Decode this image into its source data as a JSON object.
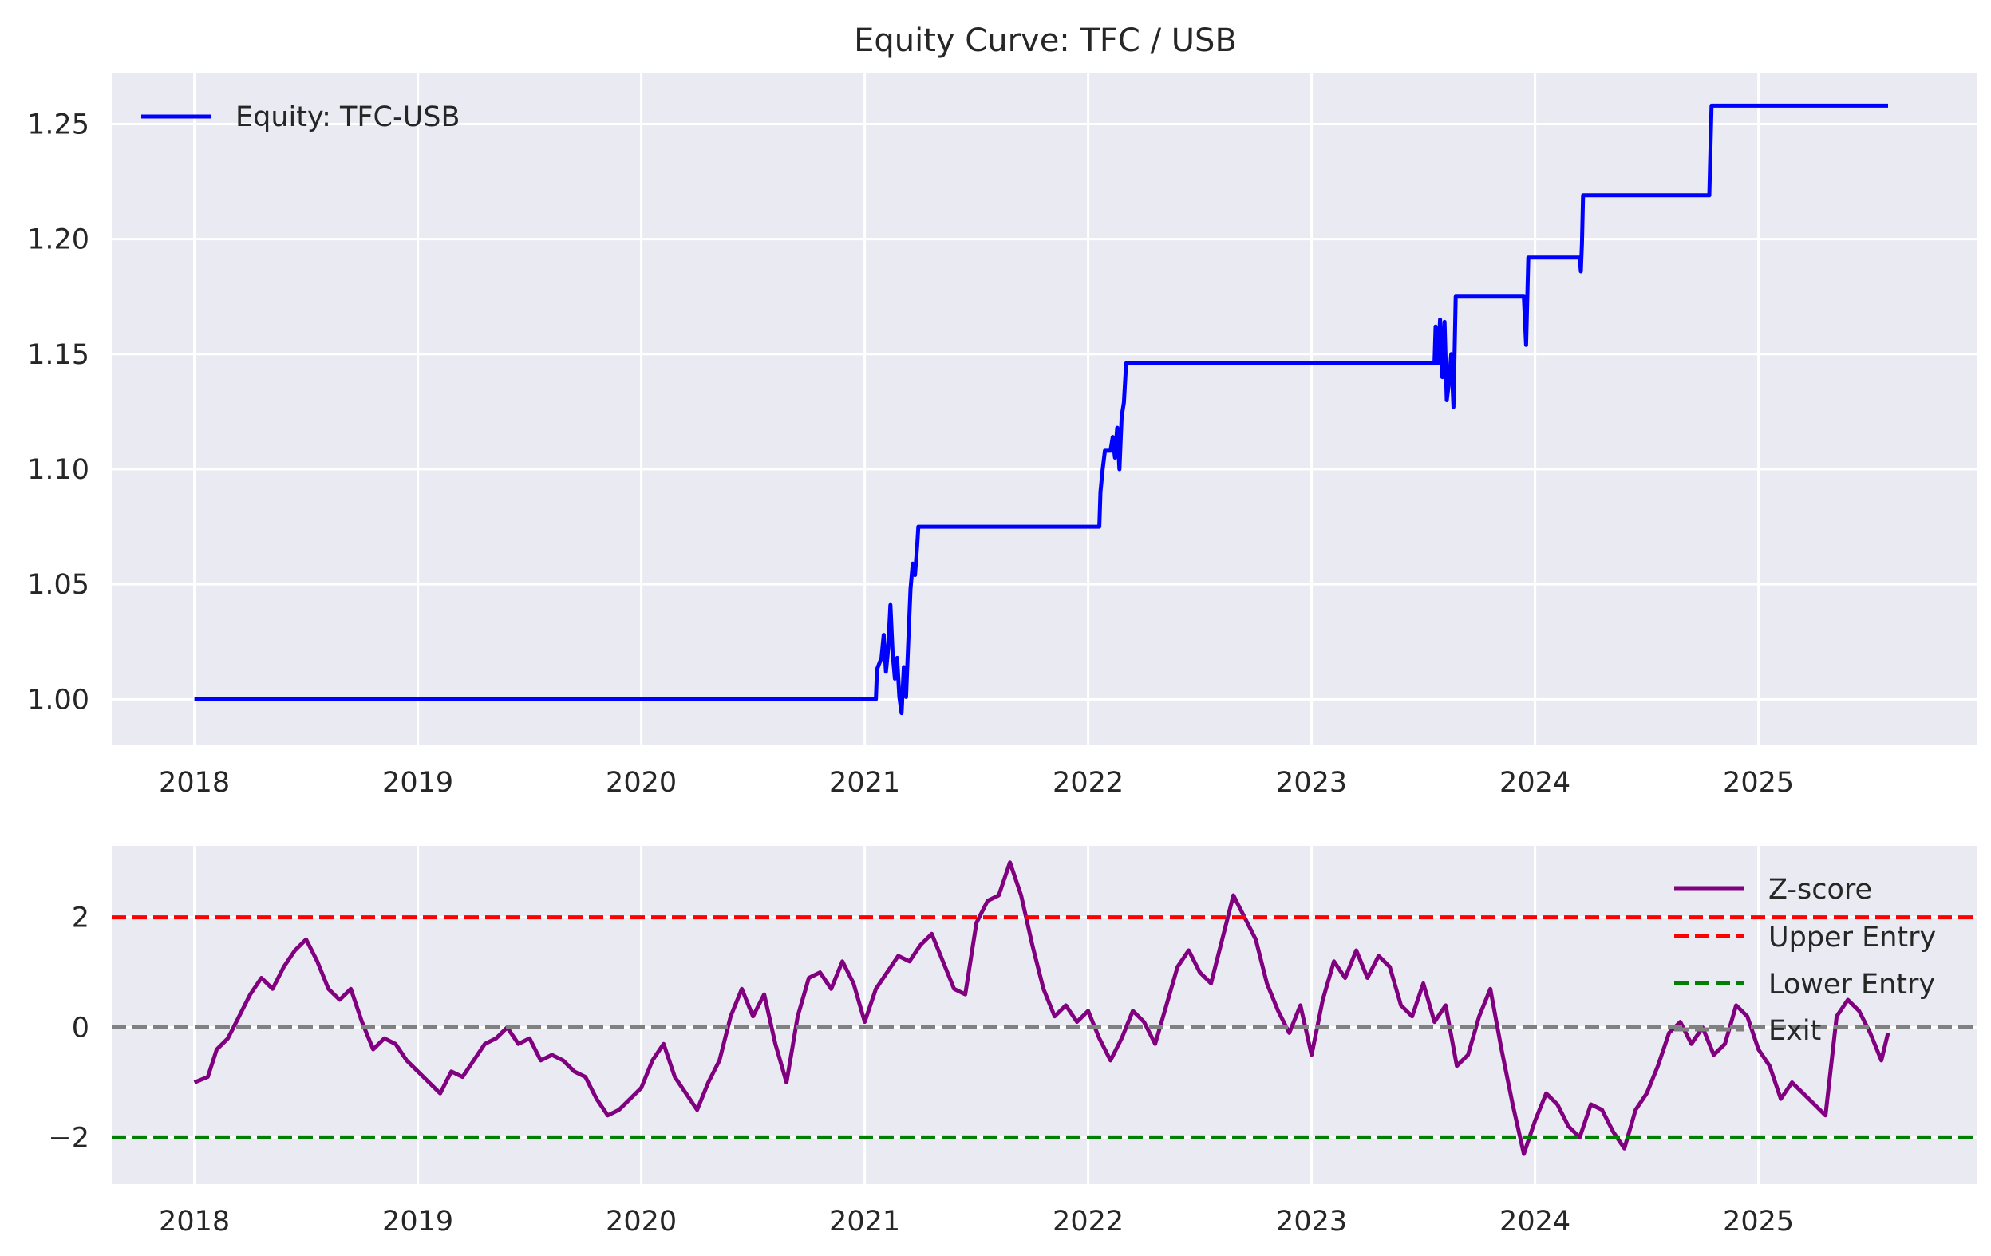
{
  "chart_data": [
    {
      "type": "line",
      "title": "Equity Curve: TFC / USB",
      "xlabel": "",
      "ylabel": "",
      "grid": true,
      "legend_placement": "top-left",
      "xlim": [
        2017.63,
        2025.98
      ],
      "ylim": [
        0.98,
        1.272
      ],
      "x_ticks": [
        "2018",
        "2019",
        "2020",
        "2021",
        "2022",
        "2023",
        "2024",
        "2025"
      ],
      "y_ticks": [
        "1.00",
        "1.05",
        "1.10",
        "1.15",
        "1.20",
        "1.25"
      ],
      "y_tick_values": [
        1.0,
        1.05,
        1.1,
        1.15,
        1.2,
        1.25
      ],
      "series": [
        {
          "name": "Equity: TFC-USB",
          "color": "#0000ff",
          "points": [
            [
              2018.0,
              1.0
            ],
            [
              2021.05,
              1.0
            ],
            [
              2021.055,
              1.013
            ],
            [
              2021.075,
              1.018
            ],
            [
              2021.085,
              1.028
            ],
            [
              2021.095,
              1.012
            ],
            [
              2021.105,
              1.022
            ],
            [
              2021.115,
              1.041
            ],
            [
              2021.125,
              1.02
            ],
            [
              2021.135,
              1.009
            ],
            [
              2021.145,
              1.018
            ],
            [
              2021.155,
              1.001
            ],
            [
              2021.165,
              0.994
            ],
            [
              2021.175,
              1.014
            ],
            [
              2021.185,
              1.001
            ],
            [
              2021.195,
              1.025
            ],
            [
              2021.205,
              1.048
            ],
            [
              2021.215,
              1.059
            ],
            [
              2021.225,
              1.054
            ],
            [
              2021.235,
              1.067
            ],
            [
              2021.24,
              1.075
            ],
            [
              2022.05,
              1.075
            ],
            [
              2022.055,
              1.09
            ],
            [
              2022.065,
              1.1
            ],
            [
              2022.075,
              1.108
            ],
            [
              2022.1,
              1.108
            ],
            [
              2022.11,
              1.114
            ],
            [
              2022.12,
              1.105
            ],
            [
              2022.13,
              1.118
            ],
            [
              2022.14,
              1.1
            ],
            [
              2022.15,
              1.123
            ],
            [
              2022.16,
              1.129
            ],
            [
              2022.17,
              1.146
            ],
            [
              2023.55,
              1.146
            ],
            [
              2023.555,
              1.162
            ],
            [
              2023.565,
              1.146
            ],
            [
              2023.575,
              1.165
            ],
            [
              2023.585,
              1.14
            ],
            [
              2023.595,
              1.164
            ],
            [
              2023.605,
              1.13
            ],
            [
              2023.615,
              1.138
            ],
            [
              2023.625,
              1.15
            ],
            [
              2023.635,
              1.127
            ],
            [
              2023.645,
              1.175
            ],
            [
              2023.95,
              1.175
            ],
            [
              2023.96,
              1.154
            ],
            [
              2023.97,
              1.192
            ],
            [
              2024.2,
              1.192
            ],
            [
              2024.205,
              1.186
            ],
            [
              2024.21,
              1.198
            ],
            [
              2024.215,
              1.219
            ],
            [
              2024.78,
              1.219
            ],
            [
              2024.79,
              1.258
            ],
            [
              2025.58,
              1.258
            ]
          ]
        }
      ]
    },
    {
      "type": "line",
      "title": "",
      "xlabel": "",
      "ylabel": "",
      "grid": true,
      "legend_placement": "top-right",
      "xlim": [
        2017.63,
        2025.98
      ],
      "ylim": [
        -2.85,
        3.3
      ],
      "x_ticks": [
        "2018",
        "2019",
        "2020",
        "2021",
        "2022",
        "2023",
        "2024",
        "2025"
      ],
      "y_ticks": [
        "−2",
        "0",
        "2"
      ],
      "y_tick_values": [
        -2,
        0,
        2
      ],
      "series": [
        {
          "name": "Z-score",
          "color": "#800080",
          "points": [
            [
              2018.0,
              -1.0
            ],
            [
              2018.06,
              -0.9
            ],
            [
              2018.1,
              -0.4
            ],
            [
              2018.15,
              -0.2
            ],
            [
              2018.2,
              0.2
            ],
            [
              2018.25,
              0.6
            ],
            [
              2018.3,
              0.9
            ],
            [
              2018.35,
              0.7
            ],
            [
              2018.4,
              1.1
            ],
            [
              2018.45,
              1.4
            ],
            [
              2018.5,
              1.6
            ],
            [
              2018.55,
              1.2
            ],
            [
              2018.6,
              0.7
            ],
            [
              2018.65,
              0.5
            ],
            [
              2018.7,
              0.7
            ],
            [
              2018.75,
              0.1
            ],
            [
              2018.8,
              -0.4
            ],
            [
              2018.85,
              -0.2
            ],
            [
              2018.9,
              -0.3
            ],
            [
              2018.95,
              -0.6
            ],
            [
              2019.0,
              -0.8
            ],
            [
              2019.05,
              -1.0
            ],
            [
              2019.1,
              -1.2
            ],
            [
              2019.15,
              -0.8
            ],
            [
              2019.2,
              -0.9
            ],
            [
              2019.25,
              -0.6
            ],
            [
              2019.3,
              -0.3
            ],
            [
              2019.35,
              -0.2
            ],
            [
              2019.4,
              0.0
            ],
            [
              2019.45,
              -0.3
            ],
            [
              2019.5,
              -0.2
            ],
            [
              2019.55,
              -0.6
            ],
            [
              2019.6,
              -0.5
            ],
            [
              2019.65,
              -0.6
            ],
            [
              2019.7,
              -0.8
            ],
            [
              2019.75,
              -0.9
            ],
            [
              2019.8,
              -1.3
            ],
            [
              2019.85,
              -1.6
            ],
            [
              2019.9,
              -1.5
            ],
            [
              2019.95,
              -1.3
            ],
            [
              2020.0,
              -1.1
            ],
            [
              2020.05,
              -0.6
            ],
            [
              2020.1,
              -0.3
            ],
            [
              2020.15,
              -0.9
            ],
            [
              2020.2,
              -1.2
            ],
            [
              2020.25,
              -1.5
            ],
            [
              2020.3,
              -1.0
            ],
            [
              2020.35,
              -0.6
            ],
            [
              2020.4,
              0.2
            ],
            [
              2020.45,
              0.7
            ],
            [
              2020.5,
              0.2
            ],
            [
              2020.55,
              0.6
            ],
            [
              2020.6,
              -0.3
            ],
            [
              2020.65,
              -1.0
            ],
            [
              2020.7,
              0.2
            ],
            [
              2020.75,
              0.9
            ],
            [
              2020.8,
              1.0
            ],
            [
              2020.85,
              0.7
            ],
            [
              2020.9,
              1.2
            ],
            [
              2020.95,
              0.8
            ],
            [
              2021.0,
              0.1
            ],
            [
              2021.05,
              0.7
            ],
            [
              2021.1,
              1.0
            ],
            [
              2021.15,
              1.3
            ],
            [
              2021.2,
              1.2
            ],
            [
              2021.25,
              1.5
            ],
            [
              2021.3,
              1.7
            ],
            [
              2021.35,
              1.2
            ],
            [
              2021.4,
              0.7
            ],
            [
              2021.45,
              0.6
            ],
            [
              2021.5,
              1.9
            ],
            [
              2021.55,
              2.3
            ],
            [
              2021.6,
              2.4
            ],
            [
              2021.65,
              3.0
            ],
            [
              2021.7,
              2.4
            ],
            [
              2021.75,
              1.5
            ],
            [
              2021.8,
              0.7
            ],
            [
              2021.85,
              0.2
            ],
            [
              2021.9,
              0.4
            ],
            [
              2021.95,
              0.1
            ],
            [
              2022.0,
              0.3
            ],
            [
              2022.05,
              -0.2
            ],
            [
              2022.1,
              -0.6
            ],
            [
              2022.15,
              -0.2
            ],
            [
              2022.2,
              0.3
            ],
            [
              2022.25,
              0.1
            ],
            [
              2022.3,
              -0.3
            ],
            [
              2022.35,
              0.4
            ],
            [
              2022.4,
              1.1
            ],
            [
              2022.45,
              1.4
            ],
            [
              2022.5,
              1.0
            ],
            [
              2022.55,
              0.8
            ],
            [
              2022.6,
              1.6
            ],
            [
              2022.65,
              2.4
            ],
            [
              2022.7,
              2.0
            ],
            [
              2022.75,
              1.6
            ],
            [
              2022.8,
              0.8
            ],
            [
              2022.85,
              0.3
            ],
            [
              2022.9,
              -0.1
            ],
            [
              2022.95,
              0.4
            ],
            [
              2023.0,
              -0.5
            ],
            [
              2023.05,
              0.5
            ],
            [
              2023.1,
              1.2
            ],
            [
              2023.15,
              0.9
            ],
            [
              2023.2,
              1.4
            ],
            [
              2023.25,
              0.9
            ],
            [
              2023.3,
              1.3
            ],
            [
              2023.35,
              1.1
            ],
            [
              2023.4,
              0.4
            ],
            [
              2023.45,
              0.2
            ],
            [
              2023.5,
              0.8
            ],
            [
              2023.55,
              0.1
            ],
            [
              2023.6,
              0.4
            ],
            [
              2023.65,
              -0.7
            ],
            [
              2023.7,
              -0.5
            ],
            [
              2023.75,
              0.2
            ],
            [
              2023.8,
              0.7
            ],
            [
              2023.85,
              -0.4
            ],
            [
              2023.9,
              -1.4
            ],
            [
              2023.95,
              -2.3
            ],
            [
              2024.0,
              -1.7
            ],
            [
              2024.05,
              -1.2
            ],
            [
              2024.1,
              -1.4
            ],
            [
              2024.15,
              -1.8
            ],
            [
              2024.2,
              -2.0
            ],
            [
              2024.25,
              -1.4
            ],
            [
              2024.3,
              -1.5
            ],
            [
              2024.35,
              -1.9
            ],
            [
              2024.4,
              -2.2
            ],
            [
              2024.45,
              -1.5
            ],
            [
              2024.5,
              -1.2
            ],
            [
              2024.55,
              -0.7
            ],
            [
              2024.6,
              -0.1
            ],
            [
              2024.65,
              0.1
            ],
            [
              2024.7,
              -0.3
            ],
            [
              2024.75,
              0.0
            ],
            [
              2024.8,
              -0.5
            ],
            [
              2024.85,
              -0.3
            ],
            [
              2024.9,
              0.4
            ],
            [
              2024.95,
              0.2
            ],
            [
              2025.0,
              -0.4
            ],
            [
              2025.05,
              -0.7
            ],
            [
              2025.1,
              -1.3
            ],
            [
              2025.15,
              -1.0
            ],
            [
              2025.2,
              -1.2
            ],
            [
              2025.25,
              -1.4
            ],
            [
              2025.3,
              -1.6
            ],
            [
              2025.35,
              0.2
            ],
            [
              2025.4,
              0.5
            ],
            [
              2025.45,
              0.3
            ],
            [
              2025.5,
              -0.1
            ],
            [
              2025.55,
              -0.6
            ],
            [
              2025.58,
              -0.1
            ]
          ]
        },
        {
          "name": "Upper Entry",
          "color": "#ff0000",
          "style": "dashed",
          "y": 2
        },
        {
          "name": "Lower Entry",
          "color": "#008000",
          "style": "dashed",
          "y": -2
        },
        {
          "name": "Exit",
          "color": "#808080",
          "style": "dashed",
          "y": 0
        }
      ]
    }
  ]
}
